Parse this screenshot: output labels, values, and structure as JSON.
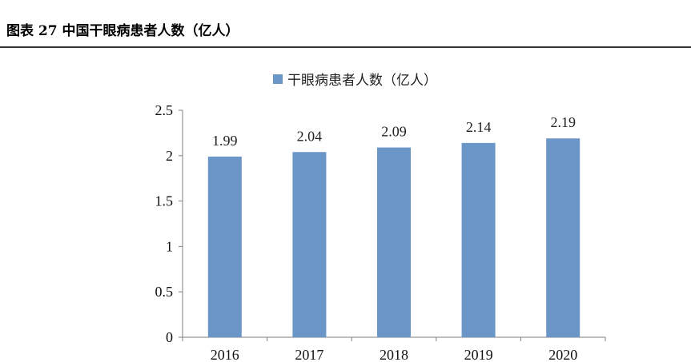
{
  "figure": {
    "title": "图表 27  中国干眼病患者人数（亿人）"
  },
  "chart_data": {
    "type": "bar",
    "title": "",
    "xlabel": "",
    "ylabel": "",
    "categories": [
      "2016",
      "2017",
      "2018",
      "2019",
      "2020"
    ],
    "series": [
      {
        "name": "干眼病患者人数（亿人）",
        "values": [
          1.99,
          2.04,
          2.09,
          2.14,
          2.19
        ],
        "color": "#6a96c8"
      }
    ],
    "data_labels": [
      "1.99",
      "2.04",
      "2.09",
      "2.14",
      "2.19"
    ],
    "ylim": [
      0,
      2.5
    ],
    "yticks": [
      0,
      0.5,
      1,
      1.5,
      2,
      2.5
    ],
    "ytick_labels": [
      "0",
      "0.5",
      "1",
      "1.5",
      "2",
      "2.5"
    ],
    "grid": false,
    "legend_position": "top-center"
  }
}
